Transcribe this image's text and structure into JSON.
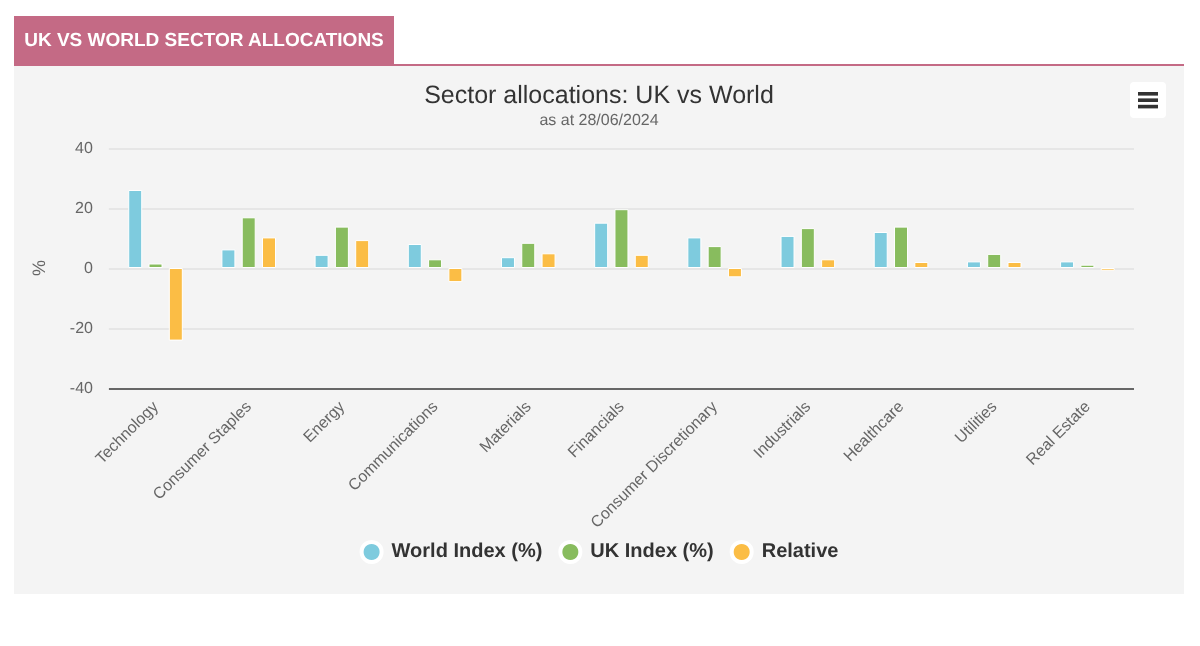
{
  "chart_data": {
    "type": "bar",
    "title": "Sector allocations: UK vs World",
    "subtitle": "as at 28/06/2024",
    "ylabel": "%",
    "annotations": [
      "UK VS WORLD SECTOR ALLOCATIONS"
    ],
    "categories": [
      "Technology",
      "Consumer Staples",
      "Energy",
      "Communications",
      "Materials",
      "Financials",
      "Consumer Discretionary",
      "Industrials",
      "Healthcare",
      "Utilities",
      "Real Estate"
    ],
    "series": [
      {
        "name": "World Index (%)",
        "color": "#7ecbde",
        "values": [
          26,
          6.2,
          4.4,
          8,
          3.6,
          15.1,
          10.2,
          10.7,
          12,
          2.2,
          2.2
        ]
      },
      {
        "name": "UK Index (%)",
        "color": "#88bc5e",
        "values": [
          1.5,
          16.9,
          13.8,
          2.9,
          8.4,
          19.6,
          7.3,
          13.3,
          13.8,
          4.7,
          1.1
        ]
      },
      {
        "name": "Relative",
        "color": "#fbbd45",
        "values": [
          -24.2,
          10.2,
          9.3,
          -4.7,
          4.9,
          4.4,
          -3.1,
          2.9,
          2,
          2,
          -0.9
        ]
      }
    ],
    "ylim": [
      -40,
      40
    ],
    "yticks": [
      -40,
      -20,
      0,
      20,
      40
    ],
    "grid": "y",
    "legend": "bottom"
  }
}
